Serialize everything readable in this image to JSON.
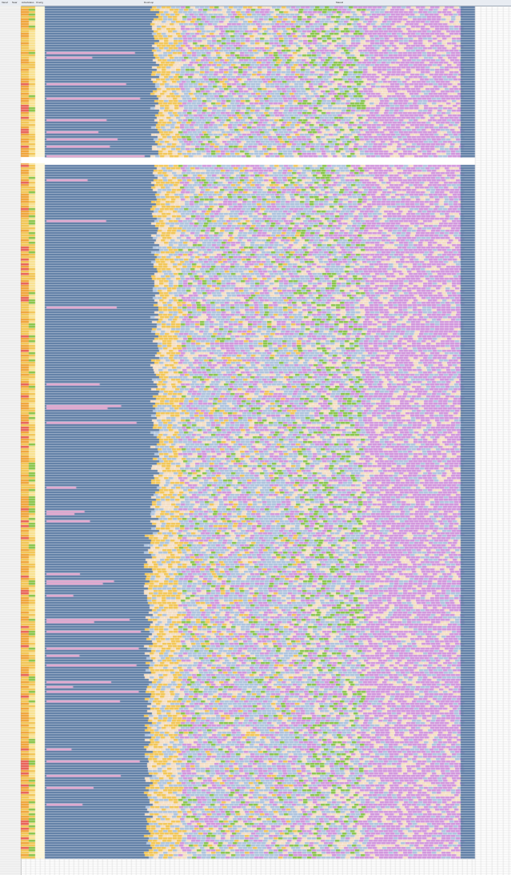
{
  "sheet": {
    "columns": [
      "Vanaf",
      "Naar",
      "Actiefstatus",
      "Overig",
      "Doorloop",
      "Maand"
    ],
    "palette": {
      "steel_blue": "#5b7aa3",
      "light_blue": "#a9c0dc",
      "lilac": "#cf8fdb",
      "peach": "#f4dcc0",
      "gold": "#f2c24b",
      "green": "#82c241",
      "pink": "#e6a8cf",
      "red": "#e85a4f",
      "orange": "#f0a030"
    },
    "selected_cell": "A1"
  }
}
